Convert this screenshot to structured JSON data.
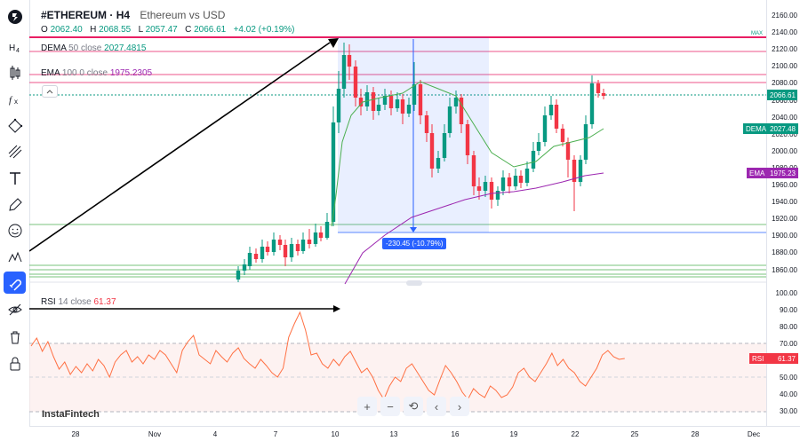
{
  "symbol": {
    "name": "#ETHEREUM",
    "interval": "H4",
    "description": "Ethereum vs USD"
  },
  "ohlc": {
    "o_label": "O",
    "o": "2062.40",
    "h_label": "H",
    "h": "2068.55",
    "l_label": "L",
    "l": "2057.47",
    "c_label": "C",
    "c": "2066.61",
    "change": "+4.02 (+0.19%)"
  },
  "indicators": {
    "dema": {
      "name": "DEMA",
      "params": "50 close",
      "value": "2027.4815",
      "badge": "DEMA",
      "badge_value": "2027.48",
      "color": "#089981"
    },
    "ema": {
      "name": "EMA",
      "params": "100 0 close",
      "value": "1975.2305",
      "badge": "EMA",
      "badge_value": "1975.23",
      "color": "#9c27b0"
    },
    "rsi": {
      "name": "RSI",
      "params": "14 close",
      "value": "61.37",
      "badge": "RSI",
      "badge_value": "61.37",
      "color": "#f23645"
    }
  },
  "price_badge": "2066.61",
  "max_label": "MAX",
  "measure_label": "-230.45 (-10.79%)",
  "price_ticks": [
    "2160.00",
    "2140.00",
    "2120.00",
    "2100.00",
    "2080.00",
    "2060.00",
    "2040.00",
    "2020.00",
    "2000.00",
    "1980.00",
    "1960.00",
    "1940.00",
    "1920.00",
    "1900.00",
    "1880.00",
    "1860.00"
  ],
  "rsi_ticks": [
    "100.00",
    "90.00",
    "80.00",
    "70.00",
    "60.00",
    "50.00",
    "40.00",
    "30.00"
  ],
  "time_ticks": [
    "28",
    "Nov",
    "4",
    "7",
    "10",
    "13",
    "16",
    "19",
    "22",
    "25",
    "28",
    "Dec"
  ],
  "watermark": "InstaFintech",
  "toolbar_icons": [
    "logo-icon",
    "interval-icon",
    "chart-type-icon",
    "indicators-icon",
    "crosshair-icon",
    "trend-line-icon",
    "text-icon",
    "brush-icon",
    "emoji-icon",
    "patterns-icon",
    "magnet-icon",
    "hide-icon",
    "trash-icon",
    "lock-icon"
  ],
  "nav_buttons": [
    "+",
    "−",
    "⟲",
    "‹",
    "›"
  ],
  "colors": {
    "up": "#089981",
    "down": "#f23645",
    "accent": "#2962ff"
  }
}
